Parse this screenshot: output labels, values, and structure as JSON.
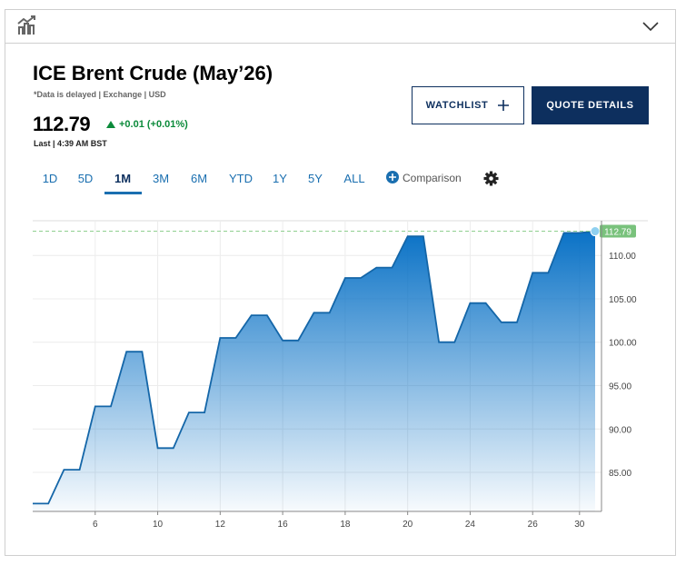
{
  "header": {
    "title": "ICE Brent Crude (May’26)",
    "note": "*Data is delayed | Exchange | USD",
    "price": "112.79",
    "change": "+0.01 (+0.01%)",
    "last": "Last | 4:39 AM BST"
  },
  "buttons": {
    "watchlist": "WATCHLIST",
    "quote": "QUOTE DETAILS"
  },
  "tabs": {
    "items": [
      "1D",
      "5D",
      "1M",
      "3M",
      "6M",
      "YTD",
      "1Y",
      "5Y",
      "ALL"
    ],
    "active": 2,
    "comparison": "Comparison"
  },
  "chart_data": {
    "type": "area",
    "categories": [
      null,
      null,
      null,
      null,
      "6",
      null,
      null,
      null,
      "10",
      null,
      null,
      null,
      "12",
      null,
      null,
      null,
      "16",
      null,
      null,
      null,
      "18",
      null,
      null,
      null,
      "20",
      null,
      null,
      null,
      "24",
      null,
      null,
      null,
      "26",
      null,
      null,
      "30",
      null
    ],
    "series": [
      {
        "name": "ICE Brent Crude (May’26)",
        "color": "#1466a8",
        "values": [
          81.4,
          81.4,
          85.3,
          85.3,
          92.6,
          92.6,
          98.9,
          98.9,
          87.8,
          87.8,
          91.9,
          91.9,
          100.5,
          100.5,
          103.1,
          103.1,
          100.2,
          100.2,
          103.4,
          103.4,
          107.4,
          107.4,
          108.6,
          108.6,
          112.2,
          112.2,
          100.0,
          100.0,
          104.5,
          104.5,
          102.3,
          102.3,
          108.0,
          108.0,
          112.6,
          112.6,
          112.79
        ]
      }
    ],
    "ylim": [
      80.5,
      114
    ],
    "yticks": [
      {
        "value": 85,
        "label": "85.00"
      },
      {
        "value": 90,
        "label": "90.00"
      },
      {
        "value": 95,
        "label": "95.00"
      },
      {
        "value": 100,
        "label": "100.00"
      },
      {
        "value": 105,
        "label": "105.00"
      },
      {
        "value": 110,
        "label": "110.00"
      }
    ],
    "grid": true
  }
}
